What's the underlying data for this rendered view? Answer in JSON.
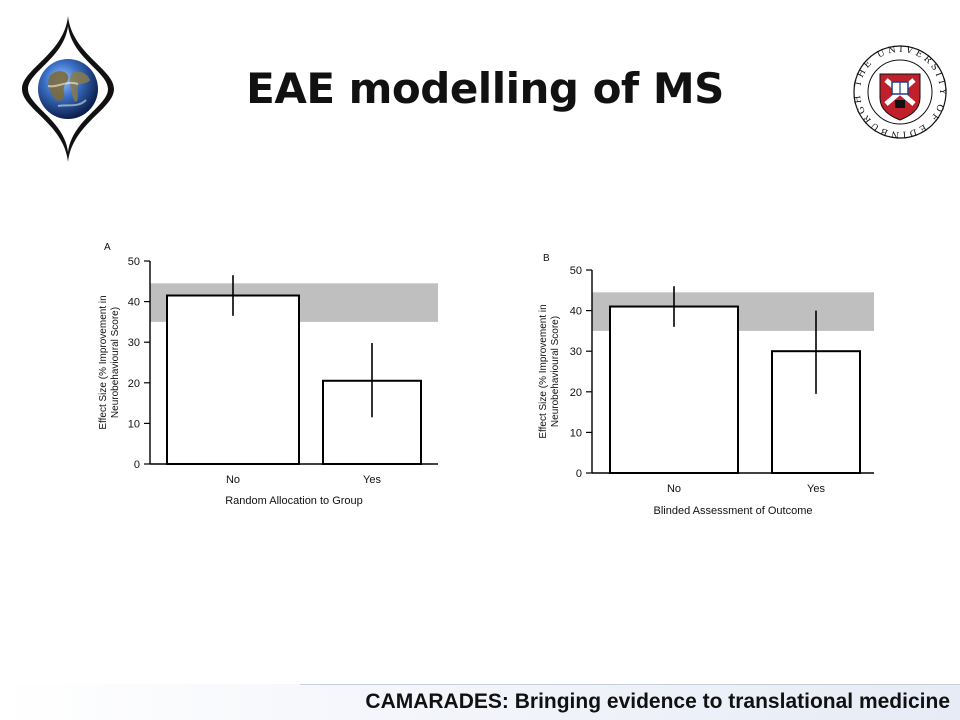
{
  "slide": {
    "title": "EAE modelling of MS",
    "footer": "CAMARADES: Bringing evidence to translational medicine",
    "left_logo_icon": "globe-emblem-icon",
    "right_logo_icon": "university-of-edinburgh-crest-icon",
    "right_logo_text": "THE UNIVERSITY OF EDINBURGH"
  },
  "chart_data": [
    {
      "type": "bar",
      "panel_label": "A",
      "categories": [
        "No",
        "Yes"
      ],
      "values": [
        41.5,
        20.5
      ],
      "error_low": [
        36.5,
        11.5
      ],
      "error_high": [
        46.5,
        29.8
      ],
      "reference_band": [
        35,
        44.5
      ],
      "xlabel": "Random Allocation to Group",
      "ylabel": "Effect Size (% Improvement in Neurobehavioural Score)",
      "ylabel_lines": [
        "Effect Size (% Improvement in",
        "Neurobehavioural Score)"
      ],
      "ylim": [
        0,
        50
      ],
      "yticks": [
        0,
        10,
        20,
        30,
        40,
        50
      ],
      "grid": false,
      "colors": {
        "bar_fill": "#ffffff",
        "bar_stroke": "#000000",
        "band": "#bfbfbf"
      }
    },
    {
      "type": "bar",
      "panel_label": "B",
      "categories": [
        "No",
        "Yes"
      ],
      "values": [
        41,
        30
      ],
      "error_low": [
        36,
        19.5
      ],
      "error_high": [
        46,
        40
      ],
      "reference_band": [
        35,
        44.5
      ],
      "xlabel": "Blinded Assessment of Outcome",
      "ylabel": "Effect Size (% Improvement in Neurobehavioural Score)",
      "ylabel_lines": [
        "Effect Size (% Improvement in",
        "Neurobehavioural Score)"
      ],
      "ylim": [
        0,
        50
      ],
      "yticks": [
        0,
        10,
        20,
        30,
        40,
        50
      ],
      "grid": false,
      "colors": {
        "bar_fill": "#ffffff",
        "bar_stroke": "#000000",
        "band": "#bfbfbf"
      }
    }
  ]
}
